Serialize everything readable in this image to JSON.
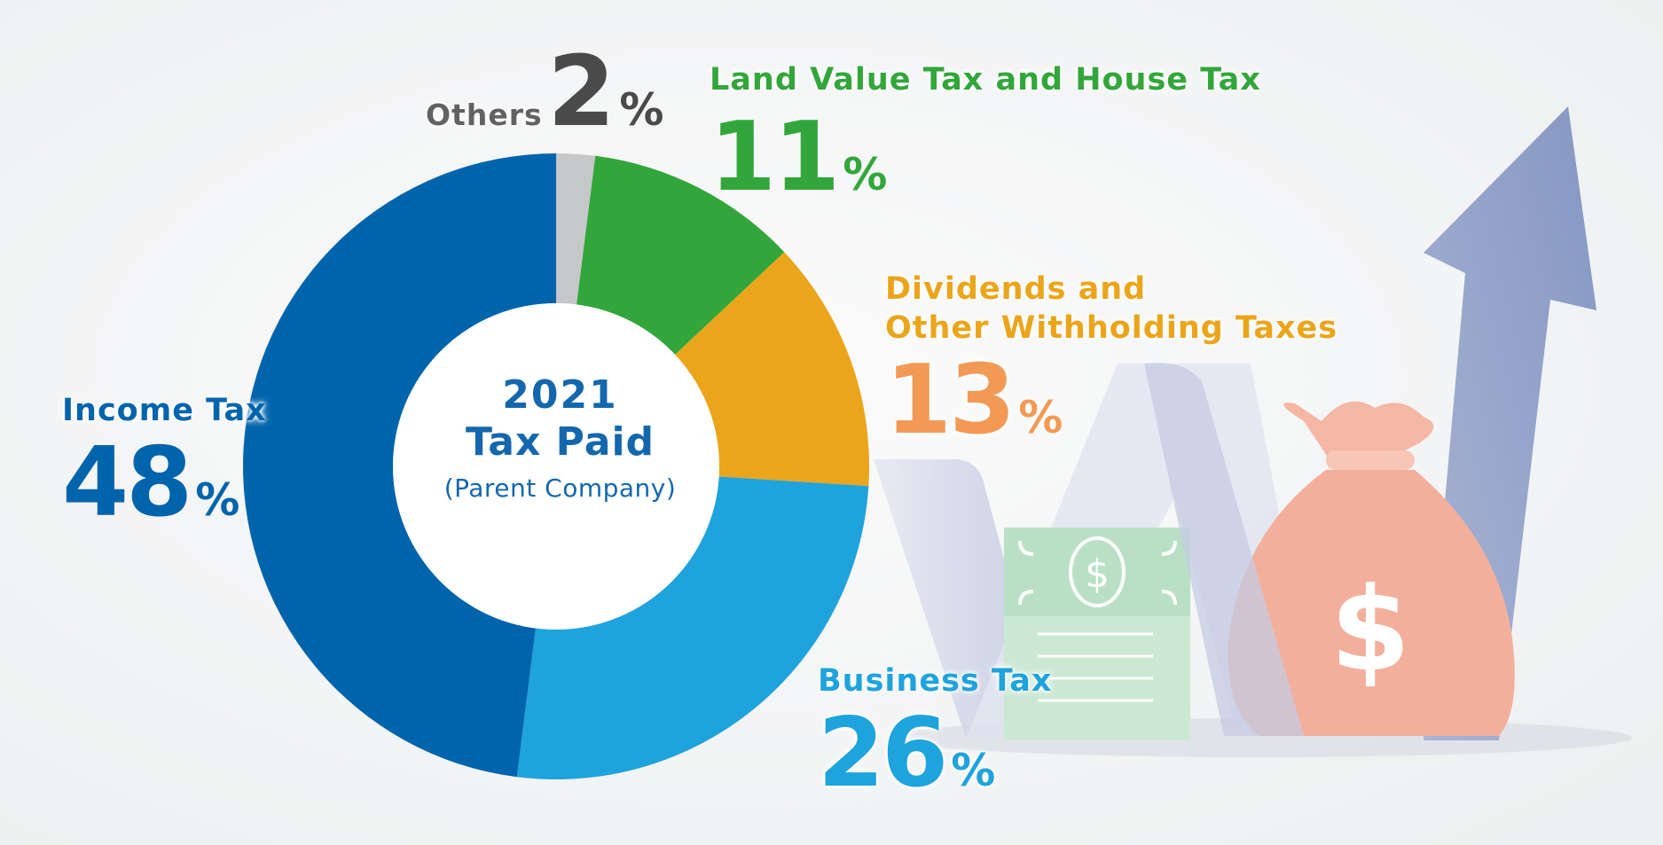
{
  "colors": {
    "income": "#0064ac",
    "business": "#1fa3dc",
    "dividends": "#eba51b",
    "land": "#33a63b",
    "others": "#c6c7c9",
    "dividends_text": "#eba51b",
    "dividends_pct_text": "#f29a55",
    "others_text": "#626262",
    "others_pct_text": "#4a4a4a",
    "center_text": "#1467ad",
    "arrow": "#8fa0c7",
    "bag": "#f0a995",
    "bill": "#c6e6cf"
  },
  "center": {
    "year": "2021",
    "title": "Tax Paid",
    "subtitle": "(Parent Company)"
  },
  "labels": {
    "others": {
      "name": "Others",
      "pct": "2",
      "sign": "%"
    },
    "land": {
      "name": "Land Value Tax and House Tax",
      "pct": "11",
      "sign": "%"
    },
    "dividends": {
      "name_line1": "Dividends and",
      "name_line2": "Other Withholding Taxes",
      "pct": "13",
      "sign": "%"
    },
    "business": {
      "name": "Business Tax",
      "pct": "26",
      "sign": "%"
    },
    "income": {
      "name": "Income Tax",
      "pct": "48",
      "sign": "%"
    }
  },
  "icons": [
    "up-arrow-icon",
    "money-bag-icon",
    "dollar-bill-icon"
  ],
  "chart_data": {
    "type": "pie",
    "title": "2021 Tax Paid",
    "subtitle": "(Parent Company)",
    "donut": true,
    "slices": [
      {
        "name": "Others",
        "value": 2,
        "color": "#c6c7c9"
      },
      {
        "name": "Land Value Tax and House Tax",
        "value": 11,
        "color": "#33a63b"
      },
      {
        "name": "Dividends and Other Withholding Taxes",
        "value": 13,
        "color": "#eba51b"
      },
      {
        "name": "Business Tax",
        "value": 26,
        "color": "#1fa3dc"
      },
      {
        "name": "Income Tax",
        "value": 48,
        "color": "#0064ac"
      }
    ]
  }
}
